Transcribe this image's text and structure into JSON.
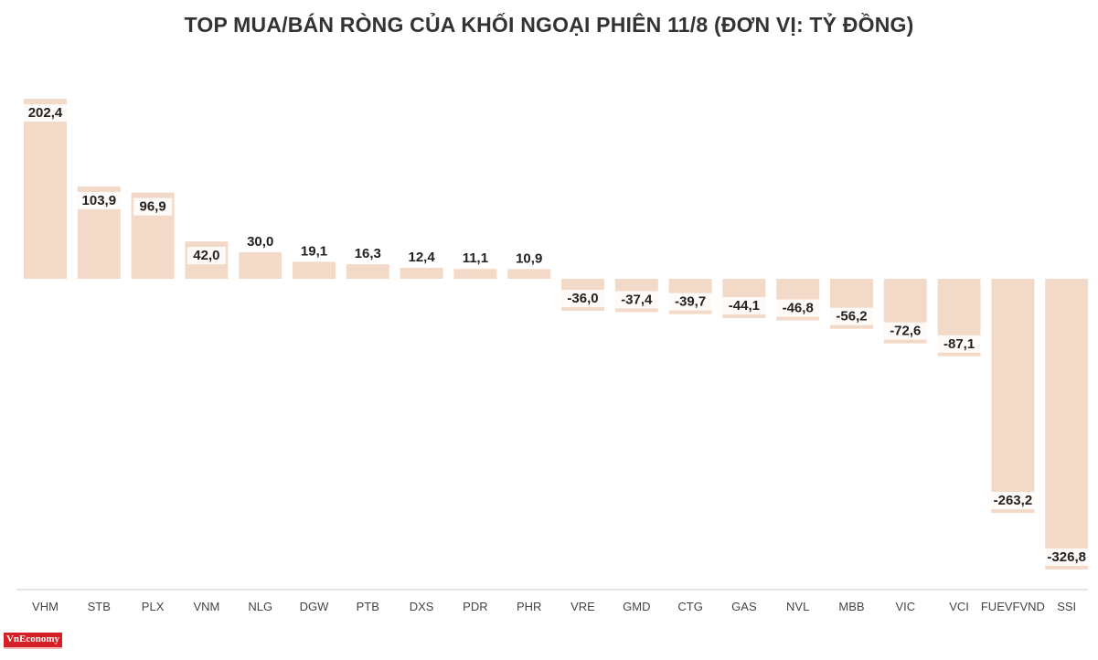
{
  "chart_data": {
    "type": "bar",
    "title": "TOP MUA/BÁN RÒNG CỦA KHỐI NGOẠI PHIÊN 11/8 (ĐƠN VỊ: TỶ ĐỒNG)",
    "categories": [
      "VHM",
      "STB",
      "PLX",
      "VNM",
      "NLG",
      "DGW",
      "PTB",
      "DXS",
      "PDR",
      "PHR",
      "VRE",
      "GMD",
      "CTG",
      "GAS",
      "NVL",
      "MBB",
      "VIC",
      "VCI",
      "FUEVFVND",
      "SSI"
    ],
    "values": [
      202.4,
      103.9,
      96.9,
      42.0,
      30.0,
      19.1,
      16.3,
      12.4,
      11.1,
      10.9,
      -36.0,
      -37.4,
      -39.7,
      -44.1,
      -46.8,
      -56.2,
      -72.6,
      -87.1,
      -263.2,
      -326.8
    ],
    "value_labels": [
      "202,4",
      "103,9",
      "96,9",
      "42,0",
      "30,0",
      "19,1",
      "16,3",
      "12,4",
      "11,1",
      "10,9",
      "-36,0",
      "-37,4",
      "-39,7",
      "-44,1",
      "-46,8",
      "-56,2",
      "-72,6",
      "-87,1",
      "-263,2",
      "-326,8"
    ],
    "bar_color": "#f3dac8",
    "label_bg_color": "#ffffff",
    "label_color": "#222222",
    "tick_color": "#444444",
    "grid": false,
    "legend": "none"
  },
  "logo": {
    "text": "VnEconomy",
    "color": "#d32027"
  }
}
